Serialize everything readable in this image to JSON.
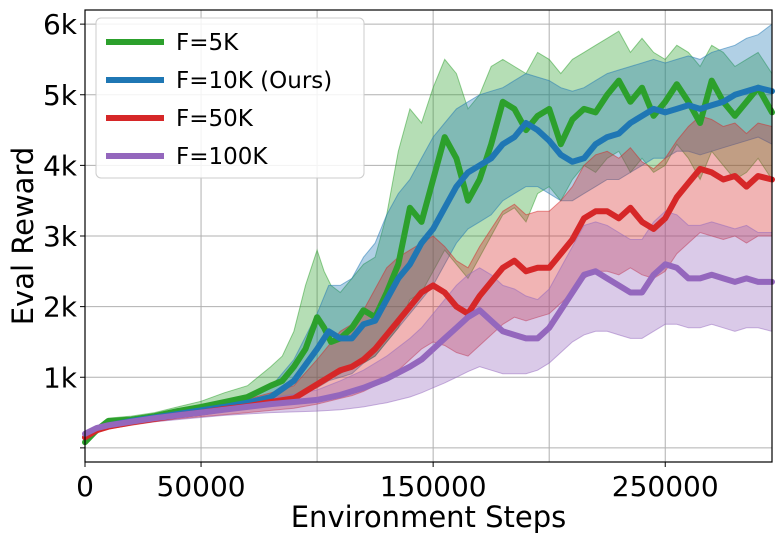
{
  "chart_data": {
    "type": "line",
    "xlabel": "Environment Steps",
    "ylabel": "Eval Reward",
    "xlim": [
      0,
      296000
    ],
    "ylim": [
      -200,
      6200
    ],
    "x_ticks": [
      0,
      50000,
      150000,
      250000
    ],
    "x_tick_labels": [
      "0",
      "50000",
      "150000",
      "250000"
    ],
    "x_grid": [
      0,
      50000,
      100000,
      150000,
      200000,
      250000
    ],
    "y_ticks": [
      0,
      1000,
      2000,
      3000,
      4000,
      5000,
      6000
    ],
    "y_tick_labels": [
      "",
      "1k",
      "2k",
      "3k",
      "4k",
      "5k",
      "6k"
    ],
    "grid": true,
    "legend_position": "top-left",
    "series": [
      {
        "name": "F=5K",
        "color": "#2ca02c",
        "x": [
          0,
          5000,
          10000,
          20000,
          30000,
          40000,
          50000,
          60000,
          70000,
          80000,
          85000,
          90000,
          95000,
          100000,
          103000,
          106000,
          110000,
          115000,
          120000,
          125000,
          130000,
          135000,
          140000,
          145000,
          150000,
          155000,
          160000,
          165000,
          170000,
          175000,
          180000,
          185000,
          190000,
          195000,
          200000,
          205000,
          210000,
          215000,
          220000,
          225000,
          230000,
          235000,
          240000,
          245000,
          250000,
          255000,
          260000,
          265000,
          270000,
          275000,
          280000,
          285000,
          290000,
          296000
        ],
        "y": [
          80,
          250,
          380,
          400,
          450,
          520,
          580,
          650,
          720,
          880,
          950,
          1150,
          1400,
          1850,
          1700,
          1500,
          1550,
          1700,
          1950,
          1850,
          2200,
          2600,
          3400,
          3200,
          3800,
          4400,
          4100,
          3500,
          3800,
          4300,
          4900,
          4800,
          4500,
          4700,
          4800,
          4300,
          4650,
          4800,
          4750,
          5000,
          5200,
          4900,
          5100,
          4700,
          4900,
          5150,
          4900,
          4600,
          5200,
          4900,
          4700,
          4900,
          5100,
          4750
        ],
        "lower": [
          80,
          200,
          320,
          350,
          400,
          460,
          500,
          550,
          600,
          650,
          680,
          720,
          820,
          900,
          950,
          1000,
          1050,
          1150,
          1200,
          1300,
          1500,
          1700,
          2100,
          2200,
          2500,
          2800,
          2600,
          2400,
          2700,
          3000,
          3300,
          3400,
          3200,
          3600,
          3700,
          3500,
          3800,
          4000,
          3900,
          4100,
          4200,
          3900,
          4100,
          3900,
          4000,
          4300,
          4100,
          3800,
          4200,
          4000,
          3800,
          3900,
          4100,
          3800
        ],
        "upper": [
          100,
          300,
          420,
          450,
          500,
          580,
          660,
          780,
          880,
          1150,
          1300,
          1650,
          2300,
          2800,
          2500,
          2300,
          2200,
          2400,
          2600,
          2700,
          3300,
          4200,
          4800,
          4600,
          5100,
          5500,
          5300,
          4800,
          5000,
          5400,
          5500,
          5400,
          5300,
          5600,
          5500,
          5300,
          5500,
          5600,
          5700,
          5800,
          5900,
          5600,
          5800,
          5600,
          5500,
          5700,
          5600,
          5400,
          5700,
          5600,
          5400,
          5500,
          5600,
          5300
        ]
      },
      {
        "name": "F=10K (Ours)",
        "color": "#1f77b4",
        "x": [
          0,
          5000,
          10000,
          20000,
          30000,
          40000,
          50000,
          60000,
          70000,
          80000,
          90000,
          100000,
          105000,
          110000,
          115000,
          120000,
          125000,
          130000,
          135000,
          140000,
          145000,
          150000,
          155000,
          160000,
          165000,
          170000,
          175000,
          180000,
          185000,
          190000,
          195000,
          200000,
          205000,
          210000,
          215000,
          220000,
          225000,
          230000,
          235000,
          240000,
          245000,
          250000,
          255000,
          260000,
          265000,
          270000,
          275000,
          280000,
          285000,
          290000,
          296000
        ],
        "y": [
          150,
          260,
          320,
          380,
          430,
          480,
          530,
          580,
          640,
          720,
          950,
          1400,
          1650,
          1550,
          1550,
          1750,
          1800,
          2100,
          2400,
          2600,
          2900,
          3100,
          3400,
          3700,
          3900,
          4000,
          4100,
          4300,
          4400,
          4600,
          4500,
          4350,
          4150,
          4050,
          4100,
          4300,
          4400,
          4450,
          4600,
          4700,
          4800,
          4750,
          4800,
          4850,
          4800,
          4850,
          4900,
          5000,
          5050,
          5100,
          5050
        ],
        "lower": [
          130,
          230,
          290,
          340,
          390,
          430,
          470,
          510,
          550,
          600,
          700,
          850,
          950,
          1000,
          1050,
          1200,
          1300,
          1500,
          1700,
          1900,
          2100,
          2300,
          2600,
          2900,
          3100,
          3200,
          3300,
          3500,
          3600,
          3700,
          3700,
          3600,
          3500,
          3500,
          3600,
          3700,
          3800,
          3800,
          3900,
          4000,
          4100,
          4100,
          4200,
          4200,
          4150,
          4200,
          4250,
          4300,
          4350,
          4400,
          4300
        ],
        "upper": [
          170,
          290,
          350,
          420,
          470,
          530,
          590,
          660,
          740,
          860,
          1250,
          1900,
          2300,
          2300,
          2400,
          2700,
          2900,
          3300,
          3600,
          3800,
          4100,
          4400,
          4600,
          4800,
          4900,
          5000,
          5050,
          5100,
          5200,
          5300,
          5250,
          5200,
          5100,
          5050,
          5100,
          5200,
          5300,
          5350,
          5400,
          5450,
          5500,
          5450,
          5500,
          5550,
          5500,
          5600,
          5650,
          5700,
          5800,
          5850,
          6000
        ]
      },
      {
        "name": "F=50K",
        "color": "#d62728",
        "x": [
          0,
          5000,
          10000,
          20000,
          30000,
          40000,
          50000,
          60000,
          70000,
          80000,
          90000,
          100000,
          110000,
          115000,
          120000,
          125000,
          130000,
          135000,
          140000,
          145000,
          150000,
          155000,
          160000,
          165000,
          170000,
          175000,
          180000,
          185000,
          190000,
          195000,
          200000,
          205000,
          210000,
          215000,
          220000,
          225000,
          230000,
          235000,
          240000,
          245000,
          250000,
          255000,
          260000,
          265000,
          270000,
          275000,
          280000,
          285000,
          290000,
          296000
        ],
        "y": [
          150,
          250,
          300,
          360,
          410,
          460,
          500,
          550,
          590,
          650,
          700,
          900,
          1100,
          1150,
          1250,
          1400,
          1600,
          1800,
          2000,
          2200,
          2300,
          2200,
          2000,
          1900,
          2150,
          2350,
          2550,
          2650,
          2500,
          2550,
          2550,
          2750,
          2950,
          3250,
          3350,
          3350,
          3250,
          3400,
          3200,
          3100,
          3250,
          3550,
          3750,
          3950,
          3900,
          3800,
          3850,
          3700,
          3850,
          3800
        ],
        "lower": [
          130,
          220,
          270,
          320,
          370,
          410,
          440,
          470,
          500,
          530,
          560,
          620,
          700,
          740,
          800,
          880,
          980,
          1100,
          1250,
          1400,
          1500,
          1450,
          1350,
          1300,
          1450,
          1600,
          1750,
          1850,
          1800,
          1850,
          1900,
          2050,
          2200,
          2400,
          2500,
          2500,
          2450,
          2550,
          2450,
          2400,
          2500,
          2750,
          2900,
          3050,
          3000,
          2950,
          3000,
          2900,
          3000,
          3000
        ],
        "upper": [
          170,
          280,
          330,
          400,
          450,
          510,
          560,
          630,
          690,
          780,
          880,
          1250,
          1650,
          1750,
          1950,
          2250,
          2550,
          2700,
          2800,
          2900,
          3000,
          2850,
          2650,
          2550,
          2850,
          3100,
          3350,
          3450,
          3300,
          3350,
          3350,
          3500,
          3700,
          4000,
          4150,
          4200,
          4100,
          4250,
          4050,
          3950,
          4100,
          4350,
          4550,
          4700,
          4650,
          4550,
          4600,
          4450,
          4600,
          4550
        ]
      },
      {
        "name": "F=100K",
        "color": "#9467bd",
        "x": [
          0,
          5000,
          10000,
          20000,
          30000,
          40000,
          50000,
          60000,
          70000,
          80000,
          90000,
          100000,
          110000,
          120000,
          130000,
          140000,
          145000,
          150000,
          155000,
          160000,
          165000,
          170000,
          175000,
          180000,
          185000,
          190000,
          195000,
          200000,
          205000,
          210000,
          215000,
          220000,
          225000,
          230000,
          235000,
          240000,
          245000,
          250000,
          255000,
          260000,
          265000,
          270000,
          275000,
          280000,
          285000,
          290000,
          296000
        ],
        "y": [
          200,
          280,
          320,
          370,
          420,
          460,
          500,
          540,
          580,
          620,
          650,
          680,
          750,
          850,
          980,
          1150,
          1250,
          1400,
          1550,
          1700,
          1850,
          1950,
          1800,
          1650,
          1600,
          1550,
          1550,
          1700,
          1950,
          2200,
          2450,
          2500,
          2400,
          2300,
          2200,
          2200,
          2450,
          2600,
          2550,
          2400,
          2400,
          2450,
          2400,
          2350,
          2400,
          2350,
          2350
        ],
        "lower": [
          180,
          250,
          290,
          330,
          370,
          400,
          430,
          460,
          480,
          500,
          510,
          520,
          540,
          580,
          640,
          720,
          780,
          850,
          920,
          1000,
          1080,
          1150,
          1100,
          1050,
          1050,
          1050,
          1100,
          1200,
          1350,
          1500,
          1600,
          1650,
          1650,
          1600,
          1550,
          1550,
          1650,
          1750,
          1750,
          1700,
          1700,
          1750,
          1700,
          1650,
          1700,
          1700,
          1650
        ],
        "upper": [
          220,
          310,
          350,
          410,
          460,
          510,
          560,
          610,
          660,
          710,
          760,
          820,
          950,
          1100,
          1300,
          1550,
          1700,
          1900,
          2100,
          2300,
          2450,
          2550,
          2450,
          2300,
          2250,
          2150,
          2100,
          2250,
          2550,
          2850,
          3150,
          3200,
          3150,
          3050,
          2950,
          2950,
          3200,
          3350,
          3300,
          3150,
          3150,
          3200,
          3150,
          3100,
          3150,
          3050,
          3050
        ]
      }
    ]
  }
}
